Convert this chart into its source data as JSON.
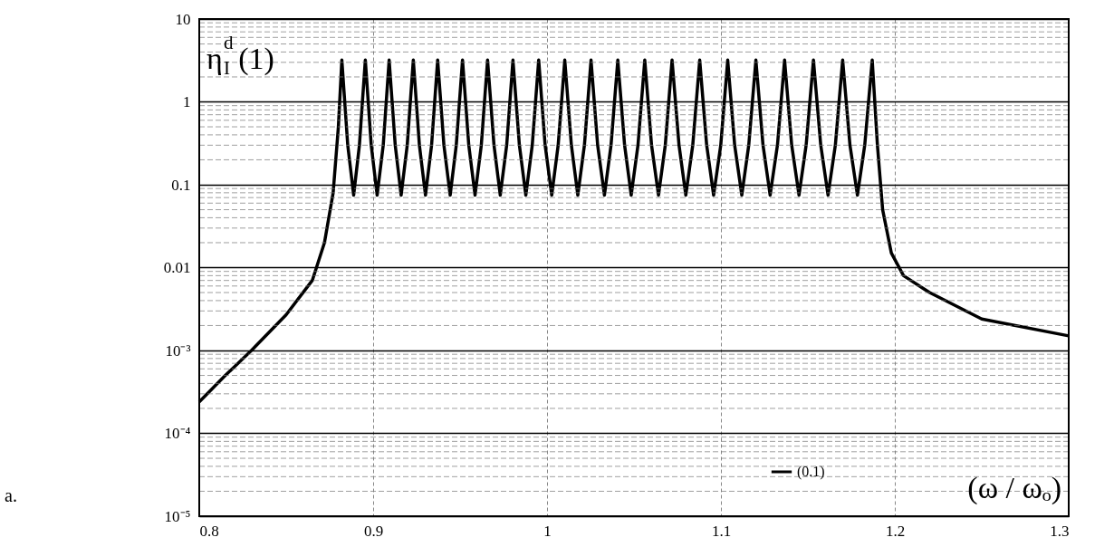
{
  "chart_data": {
    "type": "line",
    "log": "y",
    "grid": true,
    "legend": "bottom right",
    "line_style": "solid",
    "marker": "none",
    "xlabel": "(ω / ωₒ)",
    "ylabel": "η$^{d}$$_{I}$(1)",
    "annotations": [
      "a."
    ],
    "xlim": [
      0.8,
      1.3
    ],
    "xticks": [
      0.8,
      0.9,
      1,
      1.1,
      1.2,
      1.3
    ],
    "ylim": [
      1e-05,
      10
    ],
    "yticks": [
      {
        "value": 1e-05,
        "label": "10⁻⁵"
      },
      {
        "value": 0.0001,
        "label": "10⁻⁴"
      },
      {
        "value": 0.001,
        "label": "10⁻³"
      },
      0.01,
      0.1,
      1,
      10
    ],
    "series": [
      {
        "name": "(0.1)",
        "color": "#000000",
        "x": [
          0.8,
          0.815,
          0.83,
          0.85,
          0.865,
          0.872,
          0.877,
          0.88,
          0.882,
          0.8854,
          0.8888,
          0.8921,
          0.8955,
          0.8989,
          0.9023,
          0.9058,
          0.9092,
          0.9127,
          0.9161,
          0.9196,
          0.9231,
          0.9266,
          0.9301,
          0.9336,
          0.9371,
          0.9407,
          0.9443,
          0.9478,
          0.9514,
          0.955,
          0.9586,
          0.9622,
          0.9658,
          0.9695,
          0.9731,
          0.9768,
          0.9804,
          0.9841,
          0.9878,
          0.9915,
          0.9952,
          0.9989,
          1.0027,
          1.0064,
          1.0102,
          1.014,
          1.0177,
          1.0215,
          1.0253,
          1.0291,
          1.033,
          1.0368,
          1.0407,
          1.0446,
          1.0484,
          1.0523,
          1.0562,
          1.0601,
          1.0641,
          1.068,
          1.0719,
          1.0759,
          1.0798,
          1.0838,
          1.0878,
          1.0918,
          1.0958,
          1.0999,
          1.1039,
          1.1079,
          1.112,
          1.116,
          1.1201,
          1.1242,
          1.1283,
          1.1325,
          1.1366,
          1.1407,
          1.1449,
          1.149,
          1.1532,
          1.1574,
          1.1616,
          1.1658,
          1.17,
          1.1742,
          1.1785,
          1.1827,
          1.187,
          1.19,
          1.193,
          1.198,
          1.205,
          1.22,
          1.25,
          1.3
        ],
        "values": [
          0.00024,
          0.0005,
          0.001,
          0.0027,
          0.007,
          0.02,
          0.08,
          0.5,
          3.2,
          0.3,
          0.075,
          0.3,
          3.2,
          0.3,
          0.075,
          0.3,
          3.2,
          0.3,
          0.075,
          0.3,
          3.2,
          0.3,
          0.075,
          0.3,
          3.2,
          0.3,
          0.075,
          0.3,
          3.2,
          0.3,
          0.075,
          0.3,
          3.2,
          0.3,
          0.075,
          0.3,
          3.2,
          0.3,
          0.075,
          0.3,
          3.2,
          0.3,
          0.075,
          0.3,
          3.2,
          0.3,
          0.075,
          0.3,
          3.2,
          0.3,
          0.075,
          0.3,
          3.2,
          0.3,
          0.075,
          0.3,
          3.2,
          0.3,
          0.075,
          0.3,
          3.2,
          0.3,
          0.075,
          0.3,
          3.2,
          0.3,
          0.075,
          0.3,
          3.2,
          0.3,
          0.075,
          0.3,
          3.2,
          0.3,
          0.075,
          0.3,
          3.2,
          0.3,
          0.075,
          0.3,
          3.2,
          0.3,
          0.075,
          0.3,
          3.2,
          0.3,
          0.075,
          0.3,
          3.2,
          0.3,
          0.05,
          0.015,
          0.008,
          0.005,
          0.0024,
          0.0015
        ]
      }
    ]
  }
}
